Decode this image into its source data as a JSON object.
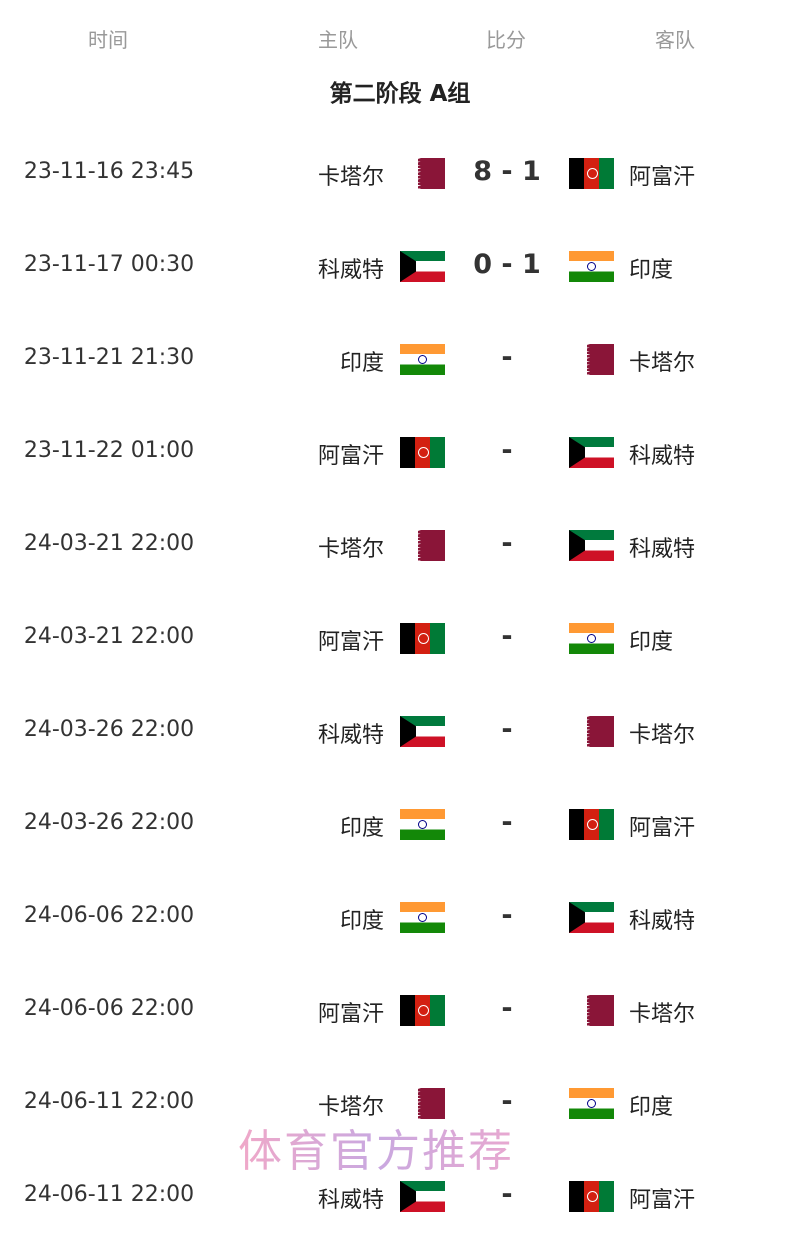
{
  "header": {
    "time": "时间",
    "home": "主队",
    "score": "比分",
    "away": "客队"
  },
  "title": "第二阶段 A组",
  "flag_colors": {
    "卡塔尔": "#8a1538",
    "阿富汗": "#d32011",
    "科威特": "#007a3d",
    "印度": "#ff9933"
  },
  "matches": [
    {
      "time": "23-11-16 23:45",
      "home": "卡塔尔",
      "home_flag": "qa",
      "score": "8 - 1",
      "away": "阿富汗",
      "away_flag": "af"
    },
    {
      "time": "23-11-17 00:30",
      "home": "科威特",
      "home_flag": "kw",
      "score": "0 - 1",
      "away": "印度",
      "away_flag": "in"
    },
    {
      "time": "23-11-21 21:30",
      "home": "印度",
      "home_flag": "in",
      "score": "-",
      "away": "卡塔尔",
      "away_flag": "qa"
    },
    {
      "time": "23-11-22 01:00",
      "home": "阿富汗",
      "home_flag": "af",
      "score": "-",
      "away": "科威特",
      "away_flag": "kw"
    },
    {
      "time": "24-03-21 22:00",
      "home": "卡塔尔",
      "home_flag": "qa",
      "score": "-",
      "away": "科威特",
      "away_flag": "kw"
    },
    {
      "time": "24-03-21 22:00",
      "home": "阿富汗",
      "home_flag": "af",
      "score": "-",
      "away": "印度",
      "away_flag": "in"
    },
    {
      "time": "24-03-26 22:00",
      "home": "科威特",
      "home_flag": "kw",
      "score": "-",
      "away": "卡塔尔",
      "away_flag": "qa"
    },
    {
      "time": "24-03-26 22:00",
      "home": "印度",
      "home_flag": "in",
      "score": "-",
      "away": "阿富汗",
      "away_flag": "af"
    },
    {
      "time": "24-06-06 22:00",
      "home": "印度",
      "home_flag": "in",
      "score": "-",
      "away": "科威特",
      "away_flag": "kw"
    },
    {
      "time": "24-06-06 22:00",
      "home": "阿富汗",
      "home_flag": "af",
      "score": "-",
      "away": "卡塔尔",
      "away_flag": "qa"
    },
    {
      "time": "24-06-11 22:00",
      "home": "卡塔尔",
      "home_flag": "qa",
      "score": "-",
      "away": "印度",
      "away_flag": "in"
    },
    {
      "time": "24-06-11 22:00",
      "home": "科威特",
      "home_flag": "kw",
      "score": "-",
      "away": "阿富汗",
      "away_flag": "af"
    }
  ],
  "watermark": "体育官方推荐"
}
